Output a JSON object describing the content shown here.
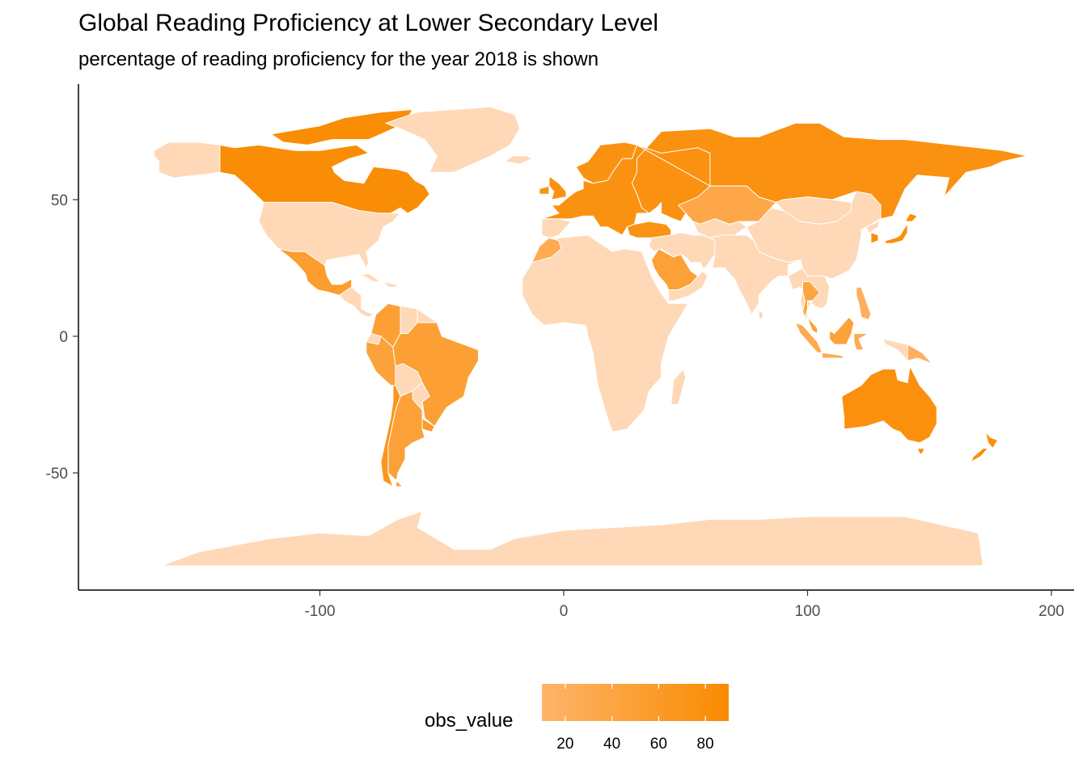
{
  "chart": {
    "title": "Global Reading Proficiency at Lower Secondary Level",
    "subtitle": "percentage of reading proficiency for the year 2018 is shown"
  },
  "chart_data": {
    "type": "choropleth",
    "title": "Global Reading Proficiency at Lower Secondary Level",
    "subtitle": "percentage of reading proficiency for the year 2018 is shown",
    "xlabel": "",
    "ylabel": "",
    "x_ticks": [
      -100,
      0,
      100,
      200
    ],
    "y_ticks": [
      50,
      0,
      -50
    ],
    "xlim": [
      -199,
      207
    ],
    "ylim": [
      -93,
      92
    ],
    "grid": false,
    "legend": {
      "title": "obs_value",
      "position": "bottom",
      "ticks": [
        20,
        40,
        60,
        80
      ],
      "range": [
        10,
        90
      ],
      "color_low": "#ffb46b",
      "color_high": "#f98b00"
    },
    "no_data_color": "#ffd8b8",
    "border_color": "#ffffff",
    "regions": [
      {
        "name": "Canada",
        "value": 86
      },
      {
        "name": "Russia",
        "value": 78
      },
      {
        "name": "Australia",
        "value": 80
      },
      {
        "name": "Brazil",
        "value": 50
      },
      {
        "name": "Argentina",
        "value": 48
      },
      {
        "name": "Chile",
        "value": 68
      },
      {
        "name": "Mexico",
        "value": 55
      },
      {
        "name": "Colombia",
        "value": 50
      },
      {
        "name": "Peru",
        "value": 46
      },
      {
        "name": "Uruguay",
        "value": 58
      },
      {
        "name": "Saudi Arabia",
        "value": 48
      },
      {
        "name": "Kazakhstan",
        "value": 36
      },
      {
        "name": "Indonesia",
        "value": 30
      },
      {
        "name": "Philippines",
        "value": 19
      },
      {
        "name": "Thailand",
        "value": 40
      },
      {
        "name": "Malaysia",
        "value": 46
      },
      {
        "name": "Morocco",
        "value": 27
      },
      {
        "name": "Turkey",
        "value": 74
      },
      {
        "name": "New Zealand",
        "value": 81
      },
      {
        "name": "Japan",
        "value": 83
      },
      {
        "name": "South Korea",
        "value": 85
      },
      {
        "name": "Europe",
        "value": 77
      },
      {
        "name": "Papua New Guinea",
        "value": 20
      }
    ]
  }
}
